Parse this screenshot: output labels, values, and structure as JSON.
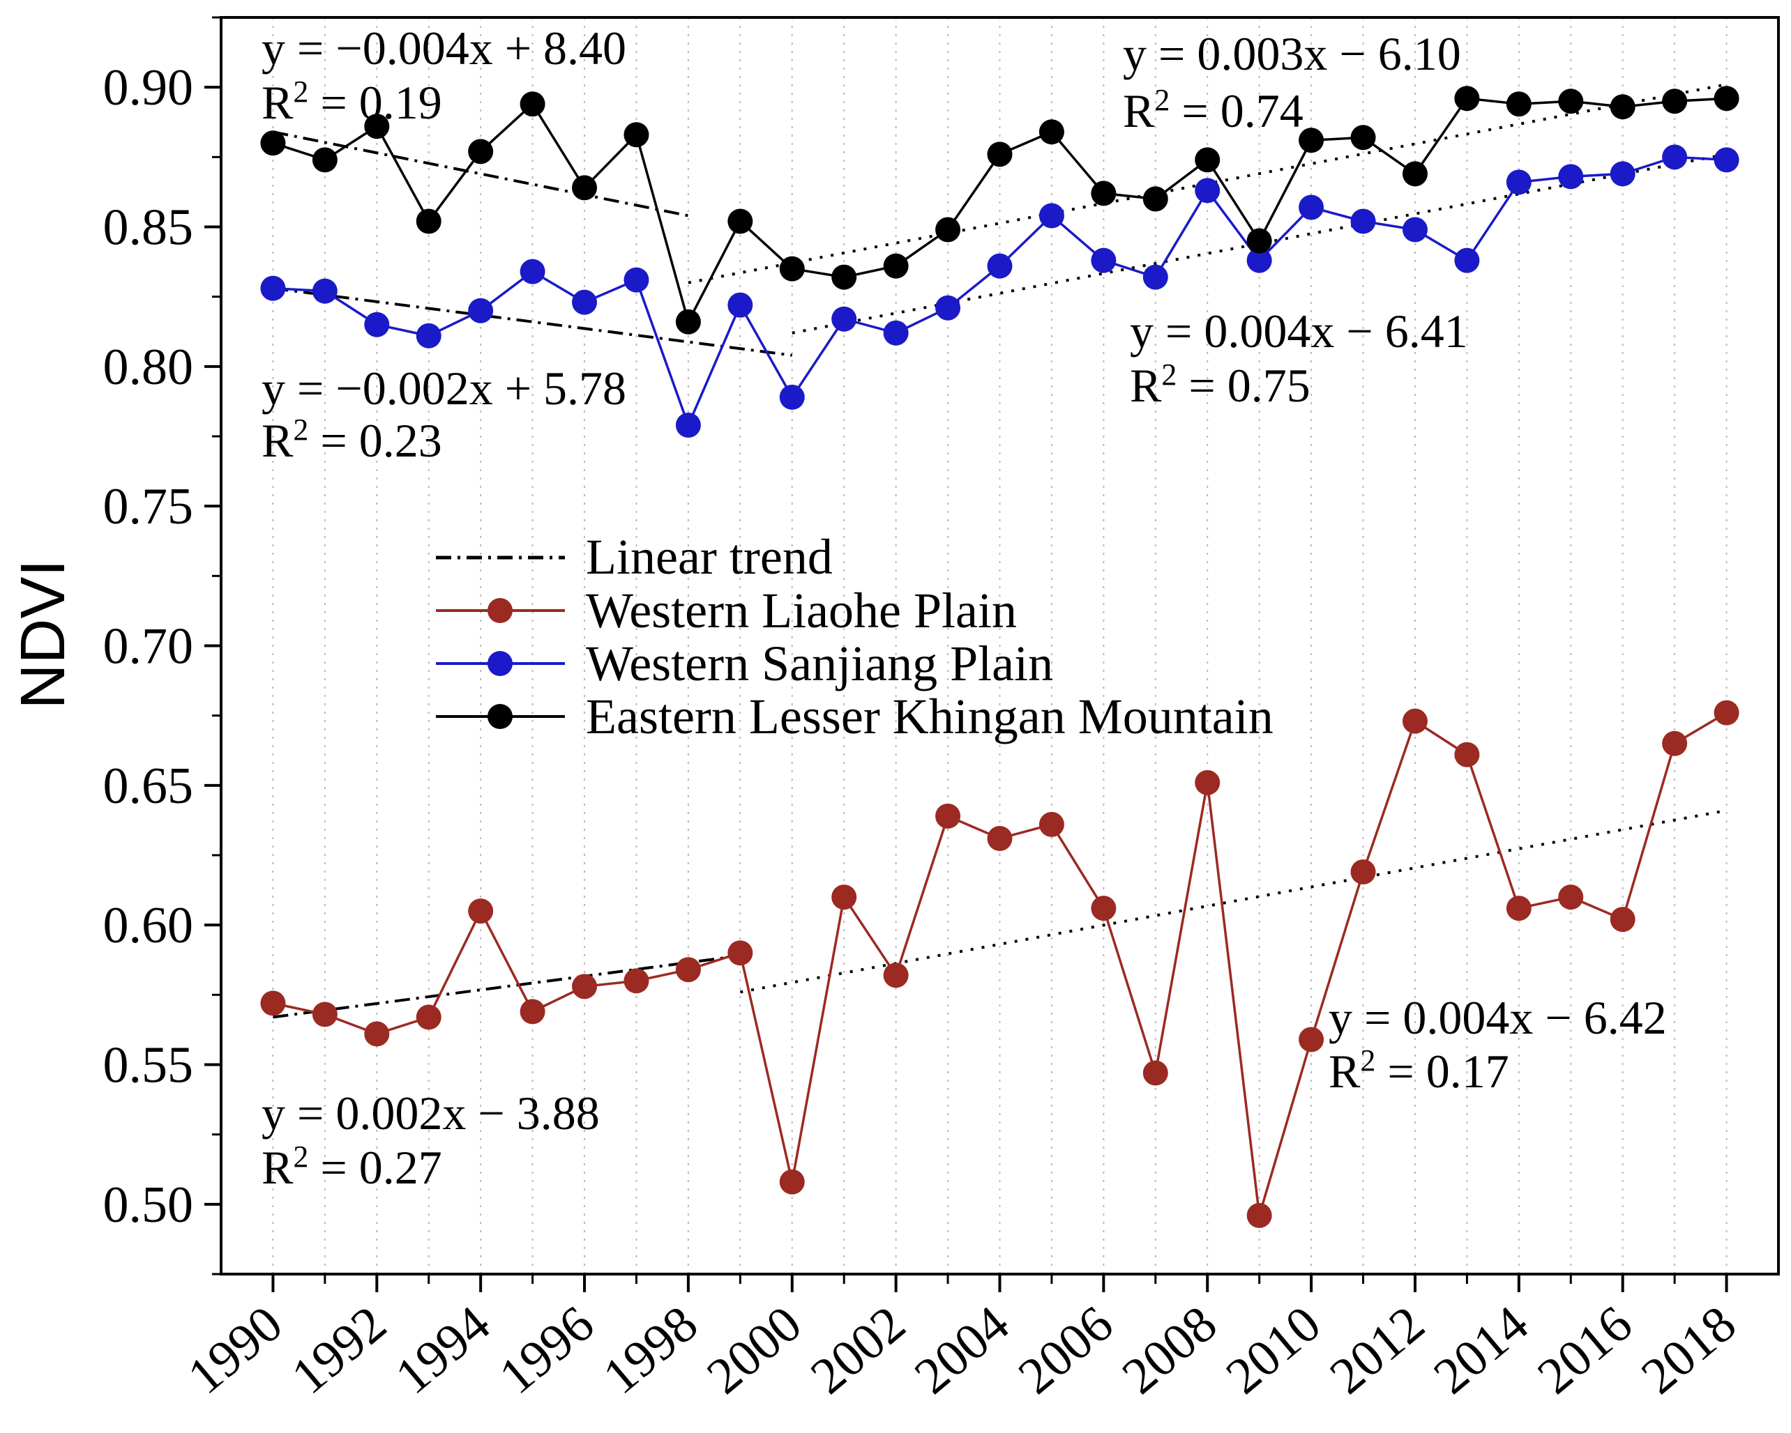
{
  "chart_data": {
    "type": "line",
    "title": "",
    "xlabel": "",
    "ylabel": "NDVI",
    "ylim": [
      0.475,
      0.925
    ],
    "xlim": [
      1989,
      2019
    ],
    "yticks": [
      "0.50",
      "0.55",
      "0.60",
      "0.65",
      "0.70",
      "0.75",
      "0.80",
      "0.85",
      "0.90"
    ],
    "xticks": [
      "1990",
      "1992",
      "1994",
      "1996",
      "1998",
      "2000",
      "2002",
      "2004",
      "2006",
      "2008",
      "2010",
      "2012",
      "2014",
      "2016",
      "2018"
    ],
    "grid": "vertical dotted lines at each year",
    "x": [
      1990,
      1991,
      1992,
      1993,
      1994,
      1995,
      1996,
      1997,
      1998,
      1999,
      2000,
      2001,
      2002,
      2003,
      2004,
      2005,
      2006,
      2007,
      2008,
      2009,
      2010,
      2011,
      2012,
      2013,
      2014,
      2015,
      2016,
      2017,
      2018
    ],
    "series": [
      {
        "name": "Western Liaohe Plain",
        "color": "#9b2a22",
        "values": [
          0.572,
          0.568,
          0.561,
          0.567,
          0.605,
          0.569,
          0.578,
          0.58,
          0.584,
          0.59,
          0.508,
          0.61,
          0.582,
          0.639,
          0.631,
          0.636,
          0.606,
          0.547,
          0.651,
          0.496,
          0.559,
          0.619,
          0.673,
          0.661,
          0.606,
          0.61,
          0.602,
          0.665,
          0.676
        ]
      },
      {
        "name": "Western Sanjiang Plain",
        "color": "#1a1ac8",
        "values": [
          0.828,
          0.827,
          0.815,
          0.811,
          0.82,
          0.834,
          0.823,
          0.831,
          0.779,
          0.822,
          0.789,
          0.817,
          0.812,
          0.821,
          0.836,
          0.854,
          0.838,
          0.832,
          0.863,
          0.838,
          0.857,
          0.852,
          0.849,
          0.838,
          0.866,
          0.868,
          0.869,
          0.875,
          0.874
        ]
      },
      {
        "name": "Eastern Lesser Khingan Mountain",
        "color": "#000000",
        "values": [
          0.88,
          0.874,
          0.886,
          0.852,
          0.877,
          0.894,
          0.864,
          0.883,
          0.816,
          0.852,
          0.835,
          0.832,
          0.836,
          0.849,
          0.876,
          0.884,
          0.862,
          0.86,
          0.874,
          0.845,
          0.881,
          0.882,
          0.869,
          0.896,
          0.894,
          0.895,
          0.893,
          0.895,
          0.896
        ]
      }
    ],
    "trend_lines": [
      {
        "series": "Eastern Lesser Khingan Mountain",
        "style": "dashdot",
        "x": [
          1990,
          1998
        ],
        "y": [
          0.884,
          0.854
        ]
      },
      {
        "series": "Eastern Lesser Khingan Mountain",
        "style": "dotted",
        "x": [
          1998,
          2018
        ],
        "y": [
          0.83,
          0.901
        ]
      },
      {
        "series": "Western Sanjiang Plain",
        "style": "dashdot",
        "x": [
          1990,
          2000
        ],
        "y": [
          0.828,
          0.804
        ]
      },
      {
        "series": "Western Sanjiang Plain",
        "style": "dotted",
        "x": [
          2000,
          2018
        ],
        "y": [
          0.812,
          0.876
        ]
      },
      {
        "series": "Western Liaohe Plain",
        "style": "dashdot",
        "x": [
          1990,
          1999
        ],
        "y": [
          0.567,
          0.589
        ]
      },
      {
        "series": "Western Liaohe Plain",
        "style": "dotted",
        "x": [
          1999,
          2018
        ],
        "y": [
          0.576,
          0.641
        ]
      }
    ],
    "legend": {
      "placement": "center-left",
      "entries": [
        "Linear trend",
        "Western Liaohe Plain",
        "Western Sanjiang Plain",
        "Eastern Lesser Khingan Mountain"
      ]
    },
    "annotations": [
      {
        "eq": "y = −0.004x + 8.40",
        "r2": "0.19"
      },
      {
        "eq": "y = 0.003x − 6.10",
        "r2": "0.74"
      },
      {
        "eq": "y = −0.002x + 5.78",
        "r2": "0.23"
      },
      {
        "eq": "y = 0.004x − 6.41",
        "r2": "0.75"
      },
      {
        "eq": "y = 0.004x − 6.42",
        "r2": "0.17"
      },
      {
        "eq": "y = 0.002x − 3.88",
        "r2": "0.27"
      }
    ]
  }
}
